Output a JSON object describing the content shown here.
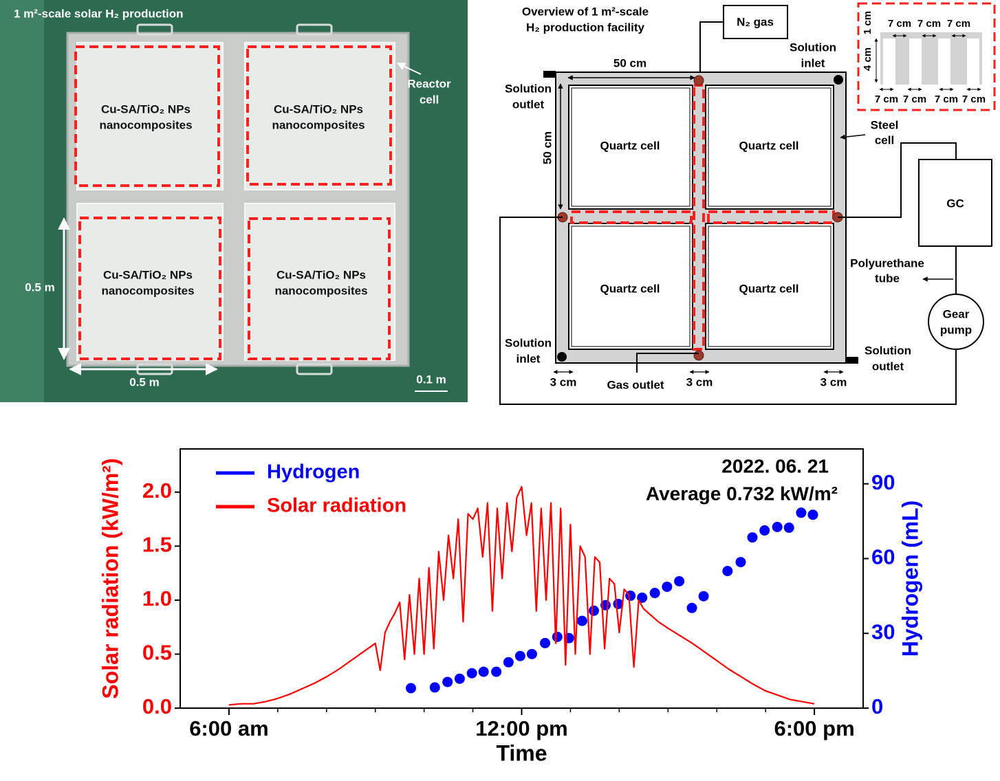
{
  "photo": {
    "title": "1 m²-scale solar H₂ production",
    "reactor_label": [
      "Reactor",
      "cell"
    ],
    "panels": [
      [
        "Cu-SA/TiO₂ NPs",
        "nanocomposites"
      ],
      [
        "Cu-SA/TiO₂ NPs",
        "nanocomposites"
      ],
      [
        "Cu-SA/TiO₂ NPs",
        "nanocomposites"
      ],
      [
        "Cu-SA/TiO₂ NPs",
        "nanocomposites"
      ]
    ],
    "height_label": "0.5 m",
    "width_label": "0.5 m",
    "scale_bar": "0.1 m"
  },
  "diagram": {
    "title": [
      "Overview of 1 m²-scale",
      "H₂ production facility"
    ],
    "n2": "N₂ gas",
    "top_inlet": [
      "Solution",
      "inlet"
    ],
    "width_dim": "50 cm",
    "top_outlet": [
      "Solution",
      "outlet"
    ],
    "height_dim": "50 cm",
    "quartz": [
      "Quartz cell",
      "Quartz cell",
      "Quartz cell",
      "Quartz cell"
    ],
    "steel": [
      "Steel",
      "cell"
    ],
    "gc": "GC",
    "tube": [
      "Polyurethane",
      "tube"
    ],
    "pump": [
      "Gear",
      "pump"
    ],
    "bottom_inlet": [
      "Solution",
      "inlet"
    ],
    "bottom_outlet": [
      "Solution",
      "outlet"
    ],
    "gap_dims": [
      "3 cm",
      "3 cm",
      "3 cm"
    ],
    "gas_outlet": "Gas outlet",
    "inset": {
      "top_widths": [
        "7 cm",
        "7 cm",
        "7 cm"
      ],
      "top_height": "1 cm",
      "channel_height": "4 cm",
      "bottom_widths": [
        "7 cm",
        "7 cm",
        "7 cm",
        "7 cm"
      ]
    }
  },
  "chart_data": {
    "type": "line",
    "x_label": "Time",
    "y_label": "Solar radiation (kW/m²)",
    "y2_label": "Hydrogen (mL)",
    "annotations": [
      "2022. 06. 21",
      "Average 0.732 kW/m²"
    ],
    "xlim": [
      5,
      19
    ],
    "xticks": [
      {
        "value": 6,
        "label": "6:00 am"
      },
      {
        "value": 12,
        "label": "12:00 pm"
      },
      {
        "value": 18,
        "label": "6:00 pm"
      }
    ],
    "xticks_minor": [
      7,
      8,
      9,
      10,
      11,
      13,
      14,
      15,
      16,
      17
    ],
    "ylim": [
      0,
      2.4
    ],
    "yticks": [
      {
        "value": 0,
        "label": "0.0"
      },
      0.5,
      {
        "value": 1,
        "label": "1.0"
      },
      1.5,
      {
        "value": 2,
        "label": "2.0"
      }
    ],
    "y2lim": [
      0,
      104
    ],
    "y2ticks": [
      0,
      30,
      60,
      90
    ],
    "legend": "top-left",
    "series": [
      {
        "name": "Hydrogen",
        "type": "scatter",
        "axis": "y2",
        "color": "#0000ff",
        "x": [
          9.73,
          10.22,
          10.48,
          10.73,
          10.98,
          11.22,
          11.48,
          11.73,
          11.97,
          12.21,
          12.48,
          12.73,
          12.97,
          13.24,
          13.48,
          13.72,
          13.98,
          14.23,
          14.47,
          14.73,
          14.98,
          15.23,
          15.49,
          15.73,
          16.22,
          16.49,
          16.73,
          16.98,
          17.24,
          17.48,
          17.73,
          17.97
        ],
        "values": [
          8.0,
          8.3,
          10.5,
          11.8,
          14.0,
          14.6,
          14.6,
          18.4,
          20.9,
          21.7,
          26.1,
          28.6,
          28.1,
          35.0,
          39.1,
          41.3,
          41.8,
          45.1,
          44.3,
          46.2,
          48.7,
          50.9,
          40.2,
          44.9,
          55.0,
          58.6,
          68.5,
          71.3,
          72.7,
          72.4,
          78.4,
          77.6
        ]
      },
      {
        "name": "Solar radiation",
        "type": "line",
        "color": "#ff0000",
        "x": [
          6.0,
          6.25,
          6.5,
          6.75,
          7.0,
          7.25,
          7.5,
          7.75,
          8.0,
          8.25,
          8.5,
          8.75,
          9.0,
          9.1,
          9.2,
          9.3,
          9.4,
          9.5,
          9.6,
          9.7,
          9.8,
          9.9,
          10.0,
          10.1,
          10.2,
          10.3,
          10.4,
          10.5,
          10.6,
          10.7,
          10.8,
          10.9,
          11.0,
          11.1,
          11.2,
          11.3,
          11.4,
          11.5,
          11.6,
          11.7,
          11.8,
          11.9,
          12.0,
          12.1,
          12.2,
          12.3,
          12.4,
          12.5,
          12.6,
          12.7,
          12.8,
          12.9,
          13.0,
          13.1,
          13.2,
          13.3,
          13.4,
          13.5,
          13.6,
          13.7,
          13.8,
          13.9,
          14.0,
          14.1,
          14.2,
          14.3,
          14.4,
          14.5,
          14.6,
          14.7,
          14.8,
          14.9,
          15.0,
          15.25,
          15.5,
          15.75,
          16.0,
          16.25,
          16.5,
          16.75,
          17.0,
          17.25,
          17.5,
          17.75,
          18.0
        ],
        "values": [
          0.03,
          0.04,
          0.04,
          0.06,
          0.09,
          0.13,
          0.18,
          0.23,
          0.29,
          0.36,
          0.44,
          0.52,
          0.6,
          0.35,
          0.7,
          0.8,
          0.88,
          0.98,
          0.45,
          1.05,
          0.5,
          1.2,
          0.5,
          1.3,
          0.55,
          1.45,
          1.0,
          1.6,
          1.2,
          1.75,
          0.8,
          1.8,
          1.75,
          1.85,
          1.4,
          1.9,
          0.9,
          1.85,
          1.2,
          1.9,
          1.45,
          1.95,
          2.05,
          1.6,
          1.9,
          0.9,
          1.85,
          1.0,
          1.9,
          0.6,
          1.85,
          0.4,
          1.7,
          0.5,
          1.5,
          1.4,
          0.5,
          1.4,
          1.35,
          0.55,
          1.2,
          1.15,
          0.7,
          1.1,
          1.05,
          0.38,
          1.0,
          0.92,
          0.88,
          0.84,
          0.8,
          0.77,
          0.74,
          0.67,
          0.6,
          0.52,
          0.44,
          0.36,
          0.29,
          0.22,
          0.16,
          0.12,
          0.08,
          0.06,
          0.04
        ]
      }
    ]
  }
}
